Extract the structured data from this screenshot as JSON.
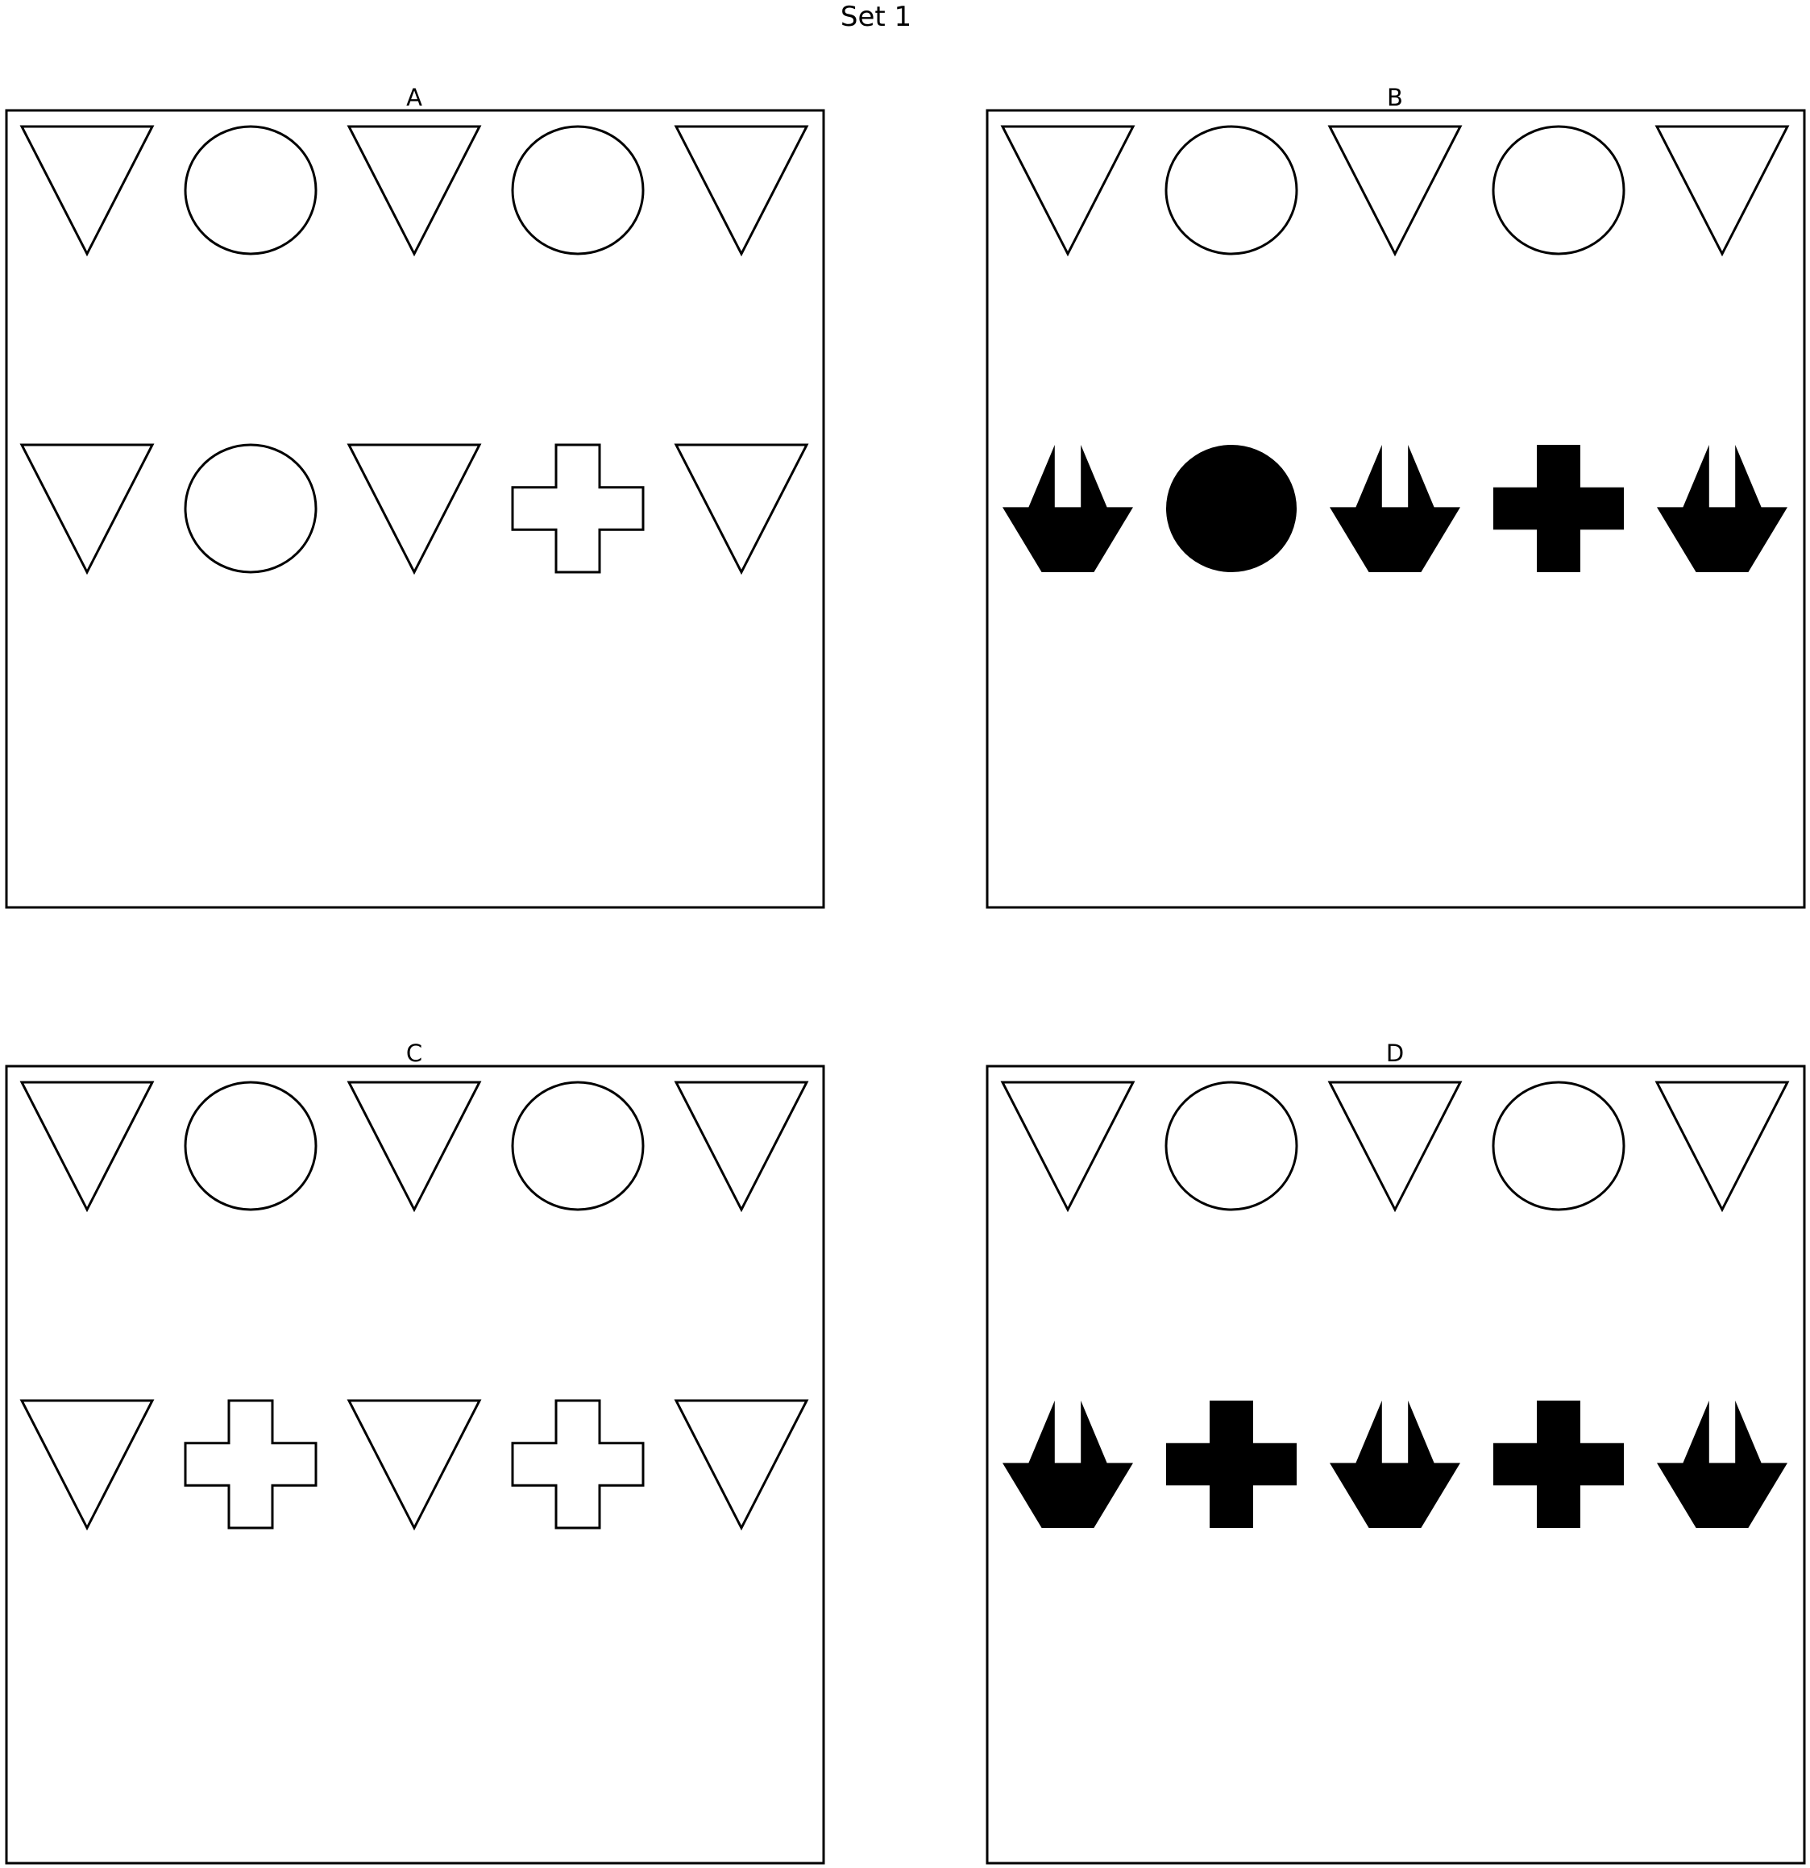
{
  "title": "Set 1",
  "panels": [
    {
      "label": "A",
      "rows": [
        [
          {
            "shape": "triangle-down",
            "filled": false
          },
          {
            "shape": "circle",
            "filled": false
          },
          {
            "shape": "triangle-down",
            "filled": false
          },
          {
            "shape": "circle",
            "filled": false
          },
          {
            "shape": "triangle-down",
            "filled": false
          }
        ],
        [
          {
            "shape": "triangle-down",
            "filled": false
          },
          {
            "shape": "circle",
            "filled": false
          },
          {
            "shape": "triangle-down",
            "filled": false
          },
          {
            "shape": "cross",
            "filled": false
          },
          {
            "shape": "triangle-down",
            "filled": false
          }
        ]
      ]
    },
    {
      "label": "B",
      "rows": [
        [
          {
            "shape": "triangle-down",
            "filled": false
          },
          {
            "shape": "circle",
            "filled": false
          },
          {
            "shape": "triangle-down",
            "filled": false
          },
          {
            "shape": "circle",
            "filled": false
          },
          {
            "shape": "triangle-down",
            "filled": false
          }
        ],
        [
          {
            "shape": "boat",
            "filled": true
          },
          {
            "shape": "circle",
            "filled": true
          },
          {
            "shape": "boat",
            "filled": true
          },
          {
            "shape": "cross",
            "filled": true
          },
          {
            "shape": "boat",
            "filled": true
          }
        ]
      ]
    },
    {
      "label": "C",
      "rows": [
        [
          {
            "shape": "triangle-down",
            "filled": false
          },
          {
            "shape": "circle",
            "filled": false
          },
          {
            "shape": "triangle-down",
            "filled": false
          },
          {
            "shape": "circle",
            "filled": false
          },
          {
            "shape": "triangle-down",
            "filled": false
          }
        ],
        [
          {
            "shape": "triangle-down",
            "filled": false
          },
          {
            "shape": "cross",
            "filled": false
          },
          {
            "shape": "triangle-down",
            "filled": false
          },
          {
            "shape": "cross",
            "filled": false
          },
          {
            "shape": "triangle-down",
            "filled": false
          }
        ]
      ]
    },
    {
      "label": "D",
      "rows": [
        [
          {
            "shape": "triangle-down",
            "filled": false
          },
          {
            "shape": "circle",
            "filled": false
          },
          {
            "shape": "triangle-down",
            "filled": false
          },
          {
            "shape": "circle",
            "filled": false
          },
          {
            "shape": "triangle-down",
            "filled": false
          }
        ],
        [
          {
            "shape": "boat",
            "filled": true
          },
          {
            "shape": "cross",
            "filled": true
          },
          {
            "shape": "boat",
            "filled": true
          },
          {
            "shape": "cross",
            "filled": true
          },
          {
            "shape": "boat",
            "filled": true
          }
        ]
      ]
    }
  ]
}
